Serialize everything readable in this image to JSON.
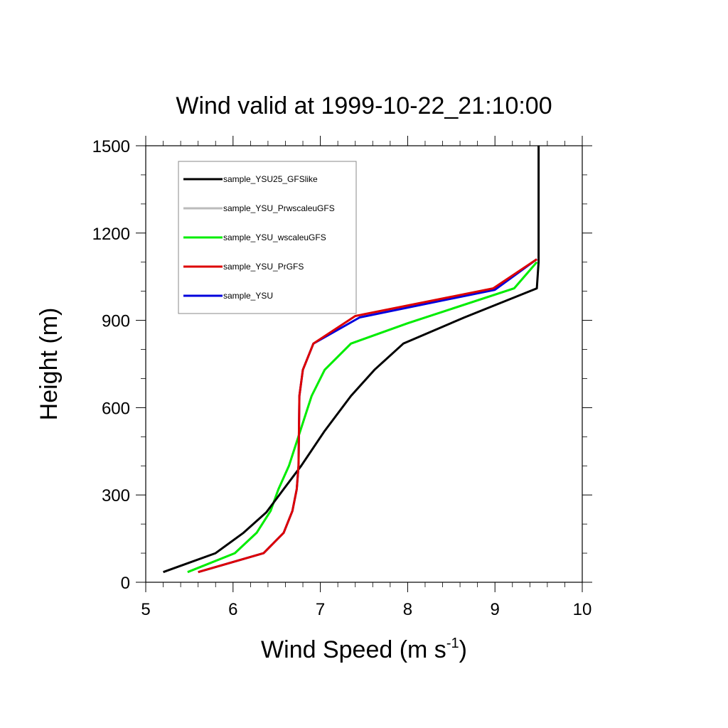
{
  "chart_data": {
    "type": "line",
    "title": "Wind valid at 1999-10-22_21:10:00",
    "xlabel": "Wind Speed (m s",
    "xlabel_superscript": "-1",
    "xlabel_suffix": ")",
    "ylabel": "Height (m)",
    "xlim": [
      5,
      10
    ],
    "ylim": [
      0,
      1500
    ],
    "xticks": [
      5,
      6,
      7,
      8,
      9,
      10
    ],
    "yticks": [
      0,
      300,
      600,
      900,
      1200,
      1500
    ],
    "legend_position": "top-left",
    "series": [
      {
        "name": "sample_YSU25_GFSlike",
        "color": "#000000",
        "x": [
          5.2,
          5.8,
          6.12,
          6.38,
          6.58,
          6.78,
          7.05,
          7.35,
          7.62,
          7.95,
          8.65,
          9.48,
          9.5,
          9.5,
          9.5
        ],
        "y": [
          35,
          100,
          170,
          240,
          320,
          400,
          520,
          640,
          730,
          820,
          910,
          1010,
          1100,
          1200,
          1500
        ]
      },
      {
        "name": "sample_YSU_PrwscaleuGFS",
        "color": "#bbbbbb",
        "x": [
          5.48,
          6.02,
          6.27,
          6.43,
          6.52,
          6.64,
          6.9,
          7.05,
          7.35,
          8.0,
          9.22,
          9.48
        ],
        "y": [
          35,
          100,
          170,
          245,
          320,
          400,
          640,
          730,
          820,
          890,
          1010,
          1100
        ]
      },
      {
        "name": "sample_YSU_wscaleuGFS",
        "color": "#00ee00",
        "x": [
          5.48,
          6.02,
          6.27,
          6.43,
          6.52,
          6.64,
          6.9,
          7.05,
          7.35,
          8.0,
          9.22,
          9.48
        ],
        "y": [
          35,
          100,
          170,
          245,
          320,
          400,
          640,
          730,
          820,
          890,
          1010,
          1100
        ]
      },
      {
        "name": "sample_YSU_PrGFS",
        "color": "#dd0000",
        "x": [
          5.6,
          6.35,
          6.58,
          6.68,
          6.73,
          6.75,
          6.76,
          6.8,
          6.92,
          7.4,
          8.98,
          9.48
        ],
        "y": [
          35,
          100,
          170,
          245,
          320,
          400,
          640,
          730,
          820,
          915,
          1010,
          1110
        ]
      },
      {
        "name": "sample_YSU",
        "color": "#0000dd",
        "x": [
          5.6,
          6.35,
          6.58,
          6.68,
          6.73,
          6.75,
          6.76,
          6.8,
          6.92,
          7.45,
          9.0,
          9.48
        ],
        "y": [
          35,
          100,
          170,
          245,
          320,
          400,
          640,
          730,
          820,
          910,
          1005,
          1110
        ]
      }
    ]
  }
}
